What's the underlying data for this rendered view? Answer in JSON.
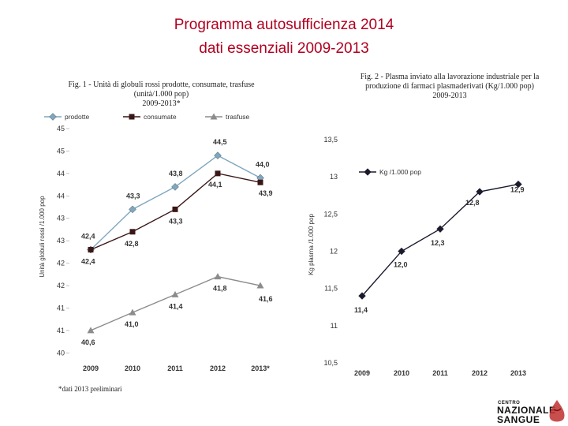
{
  "slide": {
    "title_line1": "Programma autosufficienza 2014",
    "title_line2": "dati essenziali 2009-2013",
    "footnote": "*dati 2013 preliminari"
  },
  "logo": {
    "small": "CENTRO",
    "line1": "NAZIONALE",
    "line2": "SANGUE"
  },
  "chart_data": [
    {
      "type": "line",
      "title_lines": [
        "Fig. 1 - Unità di globuli rossi prodotte, consumate, trasfuse",
        "(unità/1.000 pop)",
        "2009-2013*"
      ],
      "ylabel": "Unità globuli rossi /1.000 pop",
      "xlabel": "",
      "categories": [
        "2009",
        "2010",
        "2011",
        "2012",
        "2013*"
      ],
      "ylim": [
        40.0,
        45.1
      ],
      "yticks": [
        {
          "value": 45.1,
          "label": "45"
        },
        {
          "value": 44.6,
          "label": "45"
        },
        {
          "value": 44.1,
          "label": "44"
        },
        {
          "value": 43.6,
          "label": "44"
        },
        {
          "value": 43.1,
          "label": "43"
        },
        {
          "value": 42.6,
          "label": "43"
        },
        {
          "value": 42.1,
          "label": "42"
        },
        {
          "value": 41.6,
          "label": "42"
        },
        {
          "value": 41.1,
          "label": "41"
        },
        {
          "value": 40.6,
          "label": "41"
        },
        {
          "value": 40.1,
          "label": "40"
        }
      ],
      "legend_position": "top",
      "series": [
        {
          "name": "prodotte",
          "marker": "diamond",
          "color": "#7fa7be",
          "values": [
            42.4,
            43.3,
            43.8,
            44.5,
            44.0
          ],
          "labels": [
            "42,4",
            "43,3",
            "43,8",
            "44,5",
            "44,0"
          ]
        },
        {
          "name": "consumate",
          "marker": "square",
          "color": "#3a1616",
          "values": [
            42.4,
            42.8,
            43.3,
            44.1,
            43.9
          ],
          "labels": [
            "42,4",
            "42,8",
            "43,3",
            "44,1",
            "43,9"
          ]
        },
        {
          "name": "trasfuse",
          "marker": "triangle",
          "color": "#8c8c8c",
          "values": [
            40.6,
            41.0,
            41.4,
            41.8,
            41.6
          ],
          "labels": [
            "40,6",
            "41,0",
            "41,4",
            "41,8",
            "41,6"
          ]
        }
      ]
    },
    {
      "type": "line",
      "title_lines": [
        "Fig. 2 - Plasma inviato alla lavorazione industriale per la",
        "produzione di farmaci plasmaderivati (Kg/1.000 pop)",
        "2009-2013"
      ],
      "ylabel": "Kg plasma /1.000 pop",
      "xlabel": "",
      "categories": [
        "2009",
        "2010",
        "2011",
        "2012",
        "2013"
      ],
      "ylim": [
        10.5,
        13.5
      ],
      "yticks": [
        {
          "value": 13.5,
          "label": "13,5"
        },
        {
          "value": 13.0,
          "label": "13"
        },
        {
          "value": 12.5,
          "label": "12,5"
        },
        {
          "value": 12.0,
          "label": "12"
        },
        {
          "value": 11.5,
          "label": "11,5"
        },
        {
          "value": 11.0,
          "label": "11"
        },
        {
          "value": 10.5,
          "label": "10,5"
        }
      ],
      "legend_position": "top-right",
      "series": [
        {
          "name": "Kg /1.000 pop",
          "marker": "diamond",
          "color": "#1a1a2e",
          "values": [
            11.4,
            12.0,
            12.3,
            12.8,
            12.9
          ],
          "labels": [
            "11,4",
            "12,0",
            "12,3",
            "12,8",
            "12,9"
          ]
        }
      ]
    }
  ]
}
